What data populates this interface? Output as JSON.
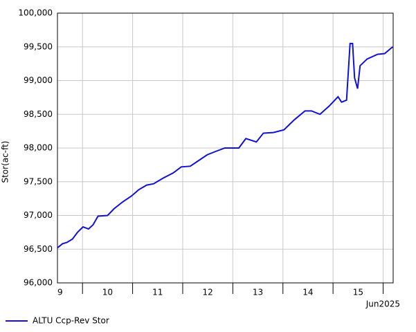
{
  "chart_data": {
    "type": "line",
    "ylabel": "Stor(ac-ft)",
    "x_note": "Jun2025",
    "x": [
      9.5,
      9.6,
      9.69,
      9.8,
      9.9,
      10.01,
      10.12,
      10.21,
      10.31,
      10.5,
      10.63,
      10.8,
      10.98,
      11.12,
      11.28,
      11.42,
      11.6,
      11.81,
      11.97,
      12.15,
      12.29,
      12.49,
      12.66,
      12.84,
      13.12,
      13.26,
      13.47,
      13.61,
      13.81,
      14.02,
      14.23,
      14.44,
      14.57,
      14.74,
      14.92,
      15.1,
      15.17,
      15.27,
      15.34,
      15.39,
      15.43,
      15.49,
      15.54,
      15.68,
      15.89,
      16.03,
      16.19
    ],
    "series": [
      {
        "name": "ALTU Ccp-Rev Stor",
        "color": "#1010d8",
        "values": [
          96520,
          96580,
          96600,
          96650,
          96750,
          96830,
          96800,
          96860,
          96990,
          97000,
          97100,
          97200,
          97290,
          97380,
          97450,
          97470,
          97550,
          97630,
          97720,
          97730,
          97800,
          97900,
          97950,
          98000,
          98000,
          98140,
          98090,
          98220,
          98230,
          98270,
          98420,
          98550,
          98550,
          98500,
          98620,
          98760,
          98680,
          98710,
          99550,
          99550,
          99040,
          98880,
          99220,
          99320,
          99390,
          99400,
          99500
        ]
      }
    ],
    "xlim": [
      9.5,
      16.2
    ],
    "xticks": [
      10,
      11,
      12,
      13,
      14,
      15,
      16
    ],
    "xlabels": [
      {
        "value": 9.5,
        "label": "9"
      },
      {
        "value": 10.5,
        "label": "10"
      },
      {
        "value": 11.5,
        "label": "11"
      },
      {
        "value": 12.5,
        "label": "12"
      },
      {
        "value": 13.5,
        "label": "13"
      },
      {
        "value": 14.5,
        "label": "14"
      },
      {
        "value": 15.5,
        "label": "15"
      }
    ],
    "ylim": [
      96000,
      100000
    ],
    "yticks": [
      {
        "value": 96000,
        "label": "96,000"
      },
      {
        "value": 96500,
        "label": "96,500"
      },
      {
        "value": 97000,
        "label": "97,000"
      },
      {
        "value": 97500,
        "label": "97,500"
      },
      {
        "value": 98000,
        "label": "98,000"
      },
      {
        "value": 98500,
        "label": "98,500"
      },
      {
        "value": 99000,
        "label": "99,000"
      },
      {
        "value": 99500,
        "label": "99,500"
      },
      {
        "value": 100000,
        "label": "100,000"
      }
    ],
    "grid": true
  }
}
